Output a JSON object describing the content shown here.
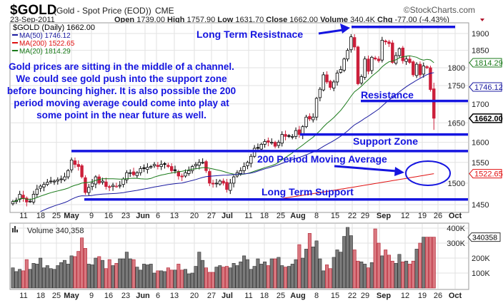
{
  "header": {
    "symbol": "$GOLD",
    "desc": "(Gold - Spot Price (EOD))",
    "exchange": "CME",
    "copyright": "©StockCharts.com",
    "date": "23-Sep-2011",
    "open_l": "Open",
    "open": "1739.00",
    "high_l": "High",
    "high": "1757.90",
    "low_l": "Low",
    "low": "1631.70",
    "close_l": "Close",
    "close": "1662.00",
    "vol_l": "Volume",
    "vol": "340.4K",
    "chg_l": "Chg",
    "chg": "-77.00 (-4.43%)"
  },
  "legend": {
    "main": "$GOLD (Daily) 1662.00",
    "ma50": "MA(50) 1746.12",
    "ma200": "MA(200) 1522.65",
    "ma20": "MA(20) 1814.29"
  },
  "price_tags": {
    "ma20": "1814.29",
    "ma50": "1746.12",
    "last": "1662.00",
    "ma200": "1522.65"
  },
  "colors": {
    "annotation": "#1515e0",
    "ma50": "#1a1aa0",
    "ma200": "#e01010",
    "ma20": "#1a7a1a",
    "down": "#cc1f3a",
    "up": "#000000",
    "vol_down": "#d9777f",
    "vol_up": "#7a7a7a"
  },
  "annotations": {
    "long_res": "Long Term Resistnace",
    "resistance": "Resistance",
    "support": "Support Zone",
    "ma200": "200 Period Moving Average",
    "long_sup": "Long Term Support",
    "note": [
      "Gold prices are sitting in the middle of a channel.",
      "We could see gold push into the support zone",
      "before bouncing higher. It is also possible the 200",
      "period moving average could come into play at",
      "some point in the near future as well."
    ]
  },
  "volume": {
    "label": "Volume 340,358",
    "tag": "340358"
  },
  "chart_data": {
    "type": "candlestick",
    "title": "$GOLD (Daily)",
    "yscale": "log",
    "ylim": [
      1430,
      1930
    ],
    "yticks": [
      "1900",
      "1850",
      "1800",
      "1750",
      "1700",
      "1650",
      "1600",
      "1550",
      "1500",
      "1450"
    ],
    "xticks": [
      {
        "l": "11",
        "b": false
      },
      {
        "l": "18",
        "b": false
      },
      {
        "l": "25",
        "b": false
      },
      {
        "l": "May",
        "b": true
      },
      {
        "l": "9",
        "b": false
      },
      {
        "l": "16",
        "b": false
      },
      {
        "l": "23",
        "b": false
      },
      {
        "l": "Jun",
        "b": true
      },
      {
        "l": "6",
        "b": false
      },
      {
        "l": "13",
        "b": false
      },
      {
        "l": "20",
        "b": false
      },
      {
        "l": "27",
        "b": false
      },
      {
        "l": "Jul",
        "b": true
      },
      {
        "l": "11",
        "b": false
      },
      {
        "l": "18",
        "b": false
      },
      {
        "l": "25",
        "b": false
      },
      {
        "l": "Aug",
        "b": true
      },
      {
        "l": "8",
        "b": false
      },
      {
        "l": "15",
        "b": false
      },
      {
        "l": "22",
        "b": false
      },
      {
        "l": "29",
        "b": false
      },
      {
        "l": "Sep",
        "b": true
      },
      {
        "l": "12",
        "b": false
      },
      {
        "l": "19",
        "b": false
      },
      {
        "l": "26",
        "b": false
      },
      {
        "l": "Oct",
        "b": true
      }
    ],
    "close": [
      1457,
      1460,
      1474,
      1465,
      1456,
      1458,
      1474,
      1486,
      1493,
      1497,
      1502,
      1505,
      1505,
      1508,
      1510,
      1515,
      1530,
      1556,
      1545,
      1540,
      1515,
      1478,
      1490,
      1500,
      1515,
      1500,
      1505,
      1492,
      1490,
      1495,
      1493,
      1495,
      1510,
      1525,
      1525,
      1520,
      1525,
      1535,
      1535,
      1538,
      1540,
      1545,
      1540,
      1545,
      1545,
      1540,
      1530,
      1530,
      1517,
      1515,
      1525,
      1530,
      1540,
      1545,
      1550,
      1550,
      1530,
      1500,
      1498,
      1500,
      1505,
      1500,
      1485,
      1500,
      1515,
      1525,
      1530,
      1540,
      1550,
      1565,
      1585,
      1585,
      1595,
      1602,
      1600,
      1600,
      1590,
      1600,
      1620,
      1615,
      1615,
      1615,
      1630,
      1620,
      1640,
      1665,
      1660,
      1665,
      1715,
      1740,
      1780,
      1760,
      1745,
      1760,
      1785,
      1795,
      1825,
      1850,
      1890,
      1860,
      1755,
      1775,
      1825,
      1790,
      1830,
      1825,
      1820,
      1880,
      1875,
      1870,
      1815,
      1835,
      1855,
      1820,
      1825,
      1815,
      1780,
      1810,
      1780,
      1805,
      1800,
      1739,
      1662
    ],
    "volume_k": [
      135,
      110,
      125,
      115,
      190,
      125,
      165,
      160,
      200,
      135,
      150,
      130,
      125,
      150,
      170,
      185,
      160,
      215,
      210,
      245,
      335,
      265,
      160,
      155,
      200,
      210,
      185,
      130,
      190,
      150,
      165,
      195,
      195,
      240,
      195,
      190,
      140,
      120,
      160,
      155,
      160,
      100,
      115,
      115,
      110,
      135,
      120,
      120,
      160,
      120,
      125,
      95,
      100,
      145,
      240,
      185,
      135,
      105,
      105,
      140,
      150,
      140,
      145,
      135,
      165,
      150,
      175,
      215,
      190,
      125,
      145,
      195,
      160,
      175,
      150,
      195,
      195,
      205,
      150,
      140,
      145,
      160,
      190,
      290,
      200,
      260,
      365,
      275,
      315,
      195,
      115,
      155,
      130,
      205,
      255,
      240,
      345,
      405,
      350,
      255,
      180,
      175,
      160,
      135,
      170,
      395,
      300,
      215,
      255,
      220,
      180,
      165,
      225,
      175,
      180,
      160,
      180,
      260,
      300,
      340,
      340,
      340,
      340
    ],
    "vticks": [
      "400K",
      "300K",
      "200K",
      "100K"
    ],
    "levels": {
      "long_term_resistance": 1920,
      "resistance": 1708,
      "support_zone": 1620,
      "channel_mid": 1578,
      "long_term_support": 1462
    },
    "ma_last": {
      "ma20": 1814.29,
      "ma50": 1746.12,
      "ma200": 1522.65
    }
  }
}
